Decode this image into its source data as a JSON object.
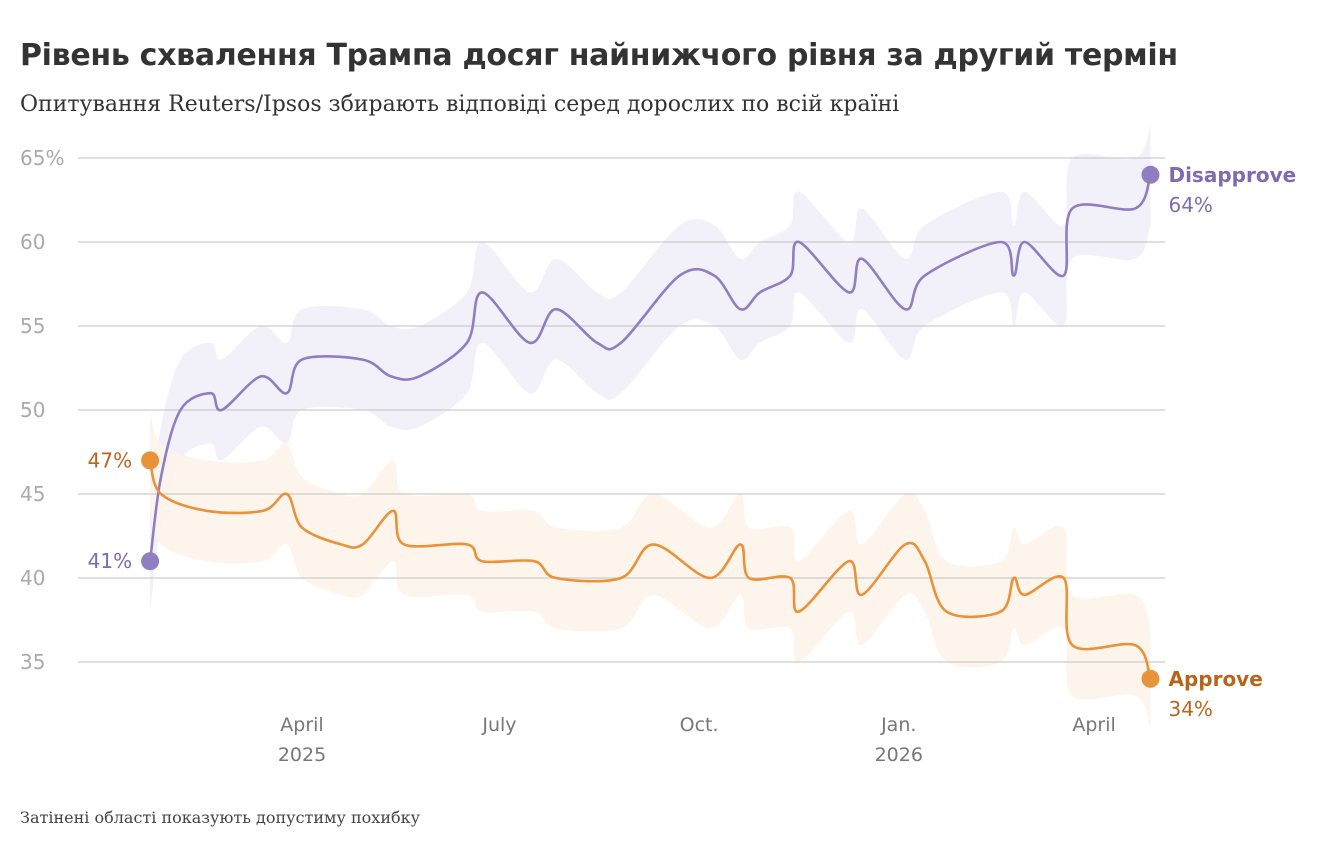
{
  "chart_data": {
    "type": "line",
    "title": "Рівень схвалення Трампа досяг найнижчого рівня за другий термін",
    "subtitle": "Опитування Reuters/Ipsos збирають відповіді серед дорослих по всій країні",
    "footnote": "Затінені області показують допустиму похибку",
    "ylim": [
      32.5,
      66
    ],
    "yticks": [
      35,
      40,
      45,
      50,
      55,
      60,
      65
    ],
    "ytick_labels": [
      "35",
      "40",
      "45",
      "50",
      "55",
      "60",
      "65%"
    ],
    "xticks": [
      {
        "date": "2025-04-01",
        "label": "April",
        "year": "2025"
      },
      {
        "date": "2025-07-01",
        "label": "July",
        "year": ""
      },
      {
        "date": "2025-10-01",
        "label": "Oct.",
        "year": ""
      },
      {
        "date": "2026-01-01",
        "label": "Jan.",
        "year": "2026"
      },
      {
        "date": "2026-04-01",
        "label": "April",
        "year": ""
      }
    ],
    "grid": true,
    "series": [
      {
        "name": "Disapprove",
        "color": "#8f7fc0",
        "label_color": "#7d6db0",
        "band_color": "#f1effa",
        "margin": 3,
        "start_label": "41%",
        "end_label": "64%",
        "points": [
          [
            "2025-01-21",
            41
          ],
          [
            "2025-01-26",
            46
          ],
          [
            "2025-02-04",
            50
          ],
          [
            "2025-02-18",
            51
          ],
          [
            "2025-02-23",
            50
          ],
          [
            "2025-03-13",
            52
          ],
          [
            "2025-03-25",
            51
          ],
          [
            "2025-04-01",
            53
          ],
          [
            "2025-04-29",
            53
          ],
          [
            "2025-05-12",
            52
          ],
          [
            "2025-05-25",
            52
          ],
          [
            "2025-06-16",
            54
          ],
          [
            "2025-06-23",
            57
          ],
          [
            "2025-07-15",
            54
          ],
          [
            "2025-07-27",
            56
          ],
          [
            "2025-08-15",
            54
          ],
          [
            "2025-08-26",
            54
          ],
          [
            "2025-09-22",
            58
          ],
          [
            "2025-10-08",
            58
          ],
          [
            "2025-10-20",
            56
          ],
          [
            "2025-10-29",
            57
          ],
          [
            "2025-11-12",
            58
          ],
          [
            "2025-11-16",
            60
          ],
          [
            "2025-12-09",
            57
          ],
          [
            "2025-12-15",
            59
          ],
          [
            "2026-01-04",
            56
          ],
          [
            "2026-01-13",
            58
          ],
          [
            "2026-02-17",
            60
          ],
          [
            "2026-02-23",
            58
          ],
          [
            "2026-02-28",
            60
          ],
          [
            "2026-03-18",
            58
          ],
          [
            "2026-03-22",
            62
          ],
          [
            "2026-04-20",
            62
          ],
          [
            "2026-04-27",
            64
          ]
        ]
      },
      {
        "name": "Approve",
        "color": "#e8923a",
        "label_color": "#b8651b",
        "band_color": "#fdf3ea",
        "margin": 3,
        "start_label": "47%",
        "end_label": "34%",
        "points": [
          [
            "2025-01-21",
            47
          ],
          [
            "2025-01-26",
            45
          ],
          [
            "2025-02-16",
            44
          ],
          [
            "2025-03-14",
            44
          ],
          [
            "2025-03-25",
            45
          ],
          [
            "2025-04-01",
            43
          ],
          [
            "2025-04-19",
            42
          ],
          [
            "2025-04-29",
            42
          ],
          [
            "2025-05-13",
            44
          ],
          [
            "2025-05-18",
            42
          ],
          [
            "2025-06-16",
            42
          ],
          [
            "2025-06-23",
            41
          ],
          [
            "2025-07-17",
            41
          ],
          [
            "2025-07-27",
            40
          ],
          [
            "2025-08-26",
            40
          ],
          [
            "2025-09-10",
            42
          ],
          [
            "2025-10-06",
            40
          ],
          [
            "2025-10-20",
            42
          ],
          [
            "2025-10-24",
            40
          ],
          [
            "2025-11-12",
            40
          ],
          [
            "2025-11-16",
            38
          ],
          [
            "2025-12-09",
            41
          ],
          [
            "2025-12-15",
            39
          ],
          [
            "2026-01-04",
            42
          ],
          [
            "2026-01-13",
            41
          ],
          [
            "2026-01-23",
            38
          ],
          [
            "2026-02-17",
            38
          ],
          [
            "2026-02-23",
            40
          ],
          [
            "2026-02-28",
            39
          ],
          [
            "2026-03-18",
            40
          ],
          [
            "2026-03-22",
            36
          ],
          [
            "2026-04-20",
            36
          ],
          [
            "2026-04-27",
            34
          ]
        ]
      }
    ]
  }
}
